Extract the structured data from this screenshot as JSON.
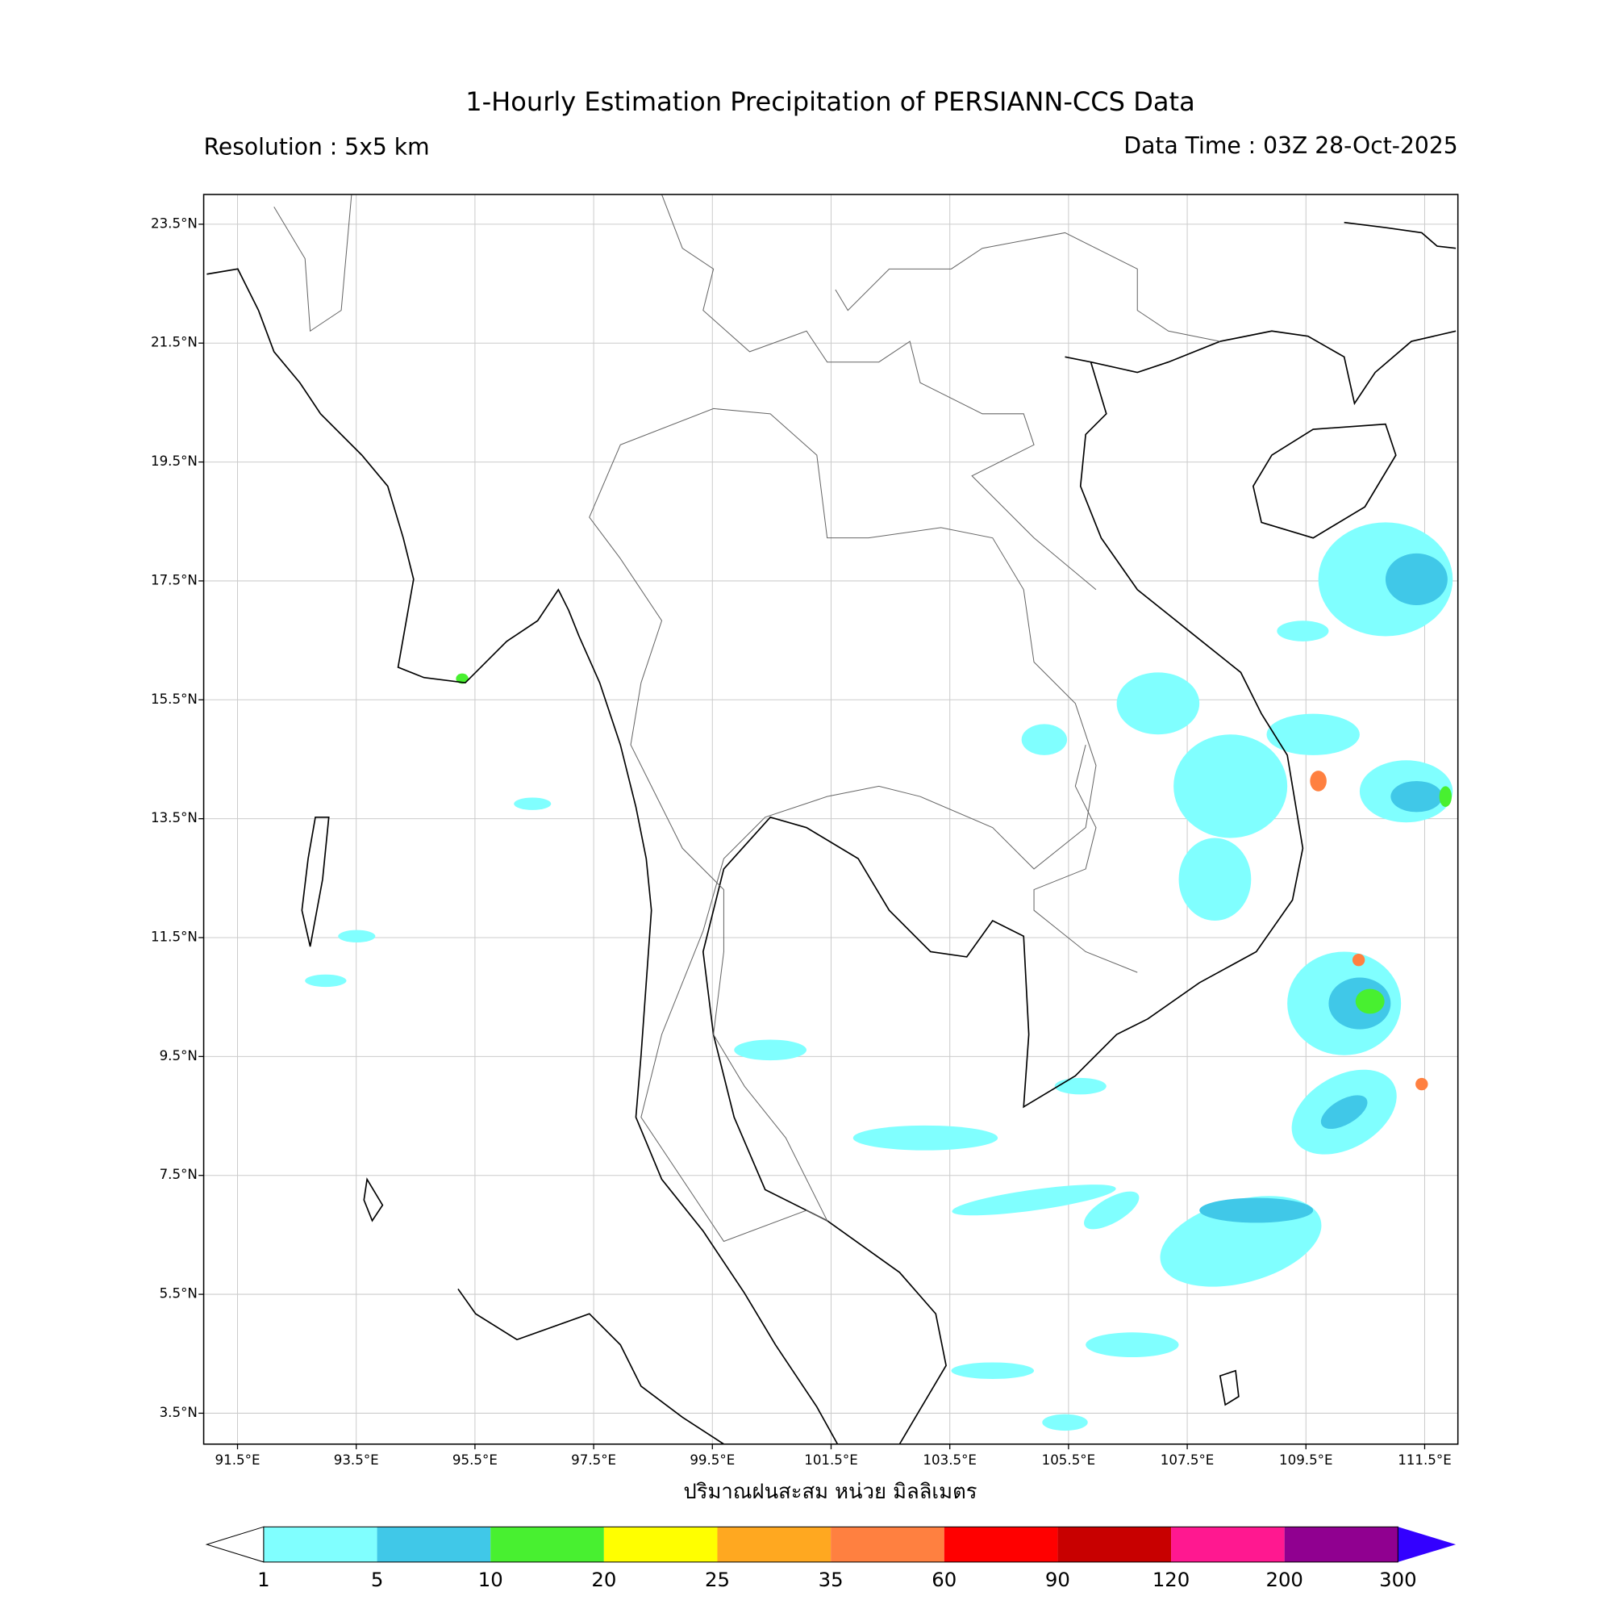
{
  "header": {
    "title": "1-Hourly Estimation Precipitation of PERSIANN-CCS Data",
    "resolution": "Resolution : 5x5 km",
    "data_time": "Data Time : 03Z 28-Oct-2025"
  },
  "map": {
    "xlim": [
      90.93,
      112.06
    ],
    "ylim": [
      2.98,
      24.0
    ],
    "grid": true,
    "xticks": [
      {
        "value": 91.5,
        "label": "91.5°E"
      },
      {
        "value": 93.5,
        "label": "93.5°E"
      },
      {
        "value": 95.5,
        "label": "95.5°E"
      },
      {
        "value": 97.5,
        "label": "97.5°E"
      },
      {
        "value": 99.5,
        "label": "99.5°E"
      },
      {
        "value": 101.5,
        "label": "101.5°E"
      },
      {
        "value": 103.5,
        "label": "103.5°E"
      },
      {
        "value": 105.5,
        "label": "105.5°E"
      },
      {
        "value": 107.5,
        "label": "107.5°E"
      },
      {
        "value": 109.5,
        "label": "109.5°E"
      },
      {
        "value": 111.5,
        "label": "111.5°E"
      }
    ],
    "yticks": [
      {
        "value": 23.5,
        "label": "23.5°N"
      },
      {
        "value": 21.5,
        "label": "21.5°N"
      },
      {
        "value": 19.5,
        "label": "19.5°N"
      },
      {
        "value": 17.5,
        "label": "17.5°N"
      },
      {
        "value": 15.5,
        "label": "15.5°N"
      },
      {
        "value": 13.5,
        "label": "13.5°N"
      },
      {
        "value": 11.5,
        "label": "11.5°N"
      },
      {
        "value": 9.5,
        "label": "9.5°N"
      },
      {
        "value": 7.5,
        "label": "7.5°N"
      },
      {
        "value": 5.5,
        "label": "5.5°N"
      },
      {
        "value": 3.5,
        "label": "3.5°N"
      }
    ],
    "xlabel": "ปริมาณฝนสะสม หน่วย มิลลิเมตร"
  },
  "colorbar": {
    "levels": [
      1,
      5,
      10,
      20,
      25,
      35,
      60,
      90,
      120,
      200,
      300
    ],
    "colors": [
      "#80ffff",
      "#40c8e8",
      "#48f030",
      "#ffff00",
      "#ffa820",
      "#ff8040",
      "#ff0000",
      "#c80000",
      "#ff1890",
      "#900090"
    ],
    "extend_max_color": "#3300ff"
  }
}
